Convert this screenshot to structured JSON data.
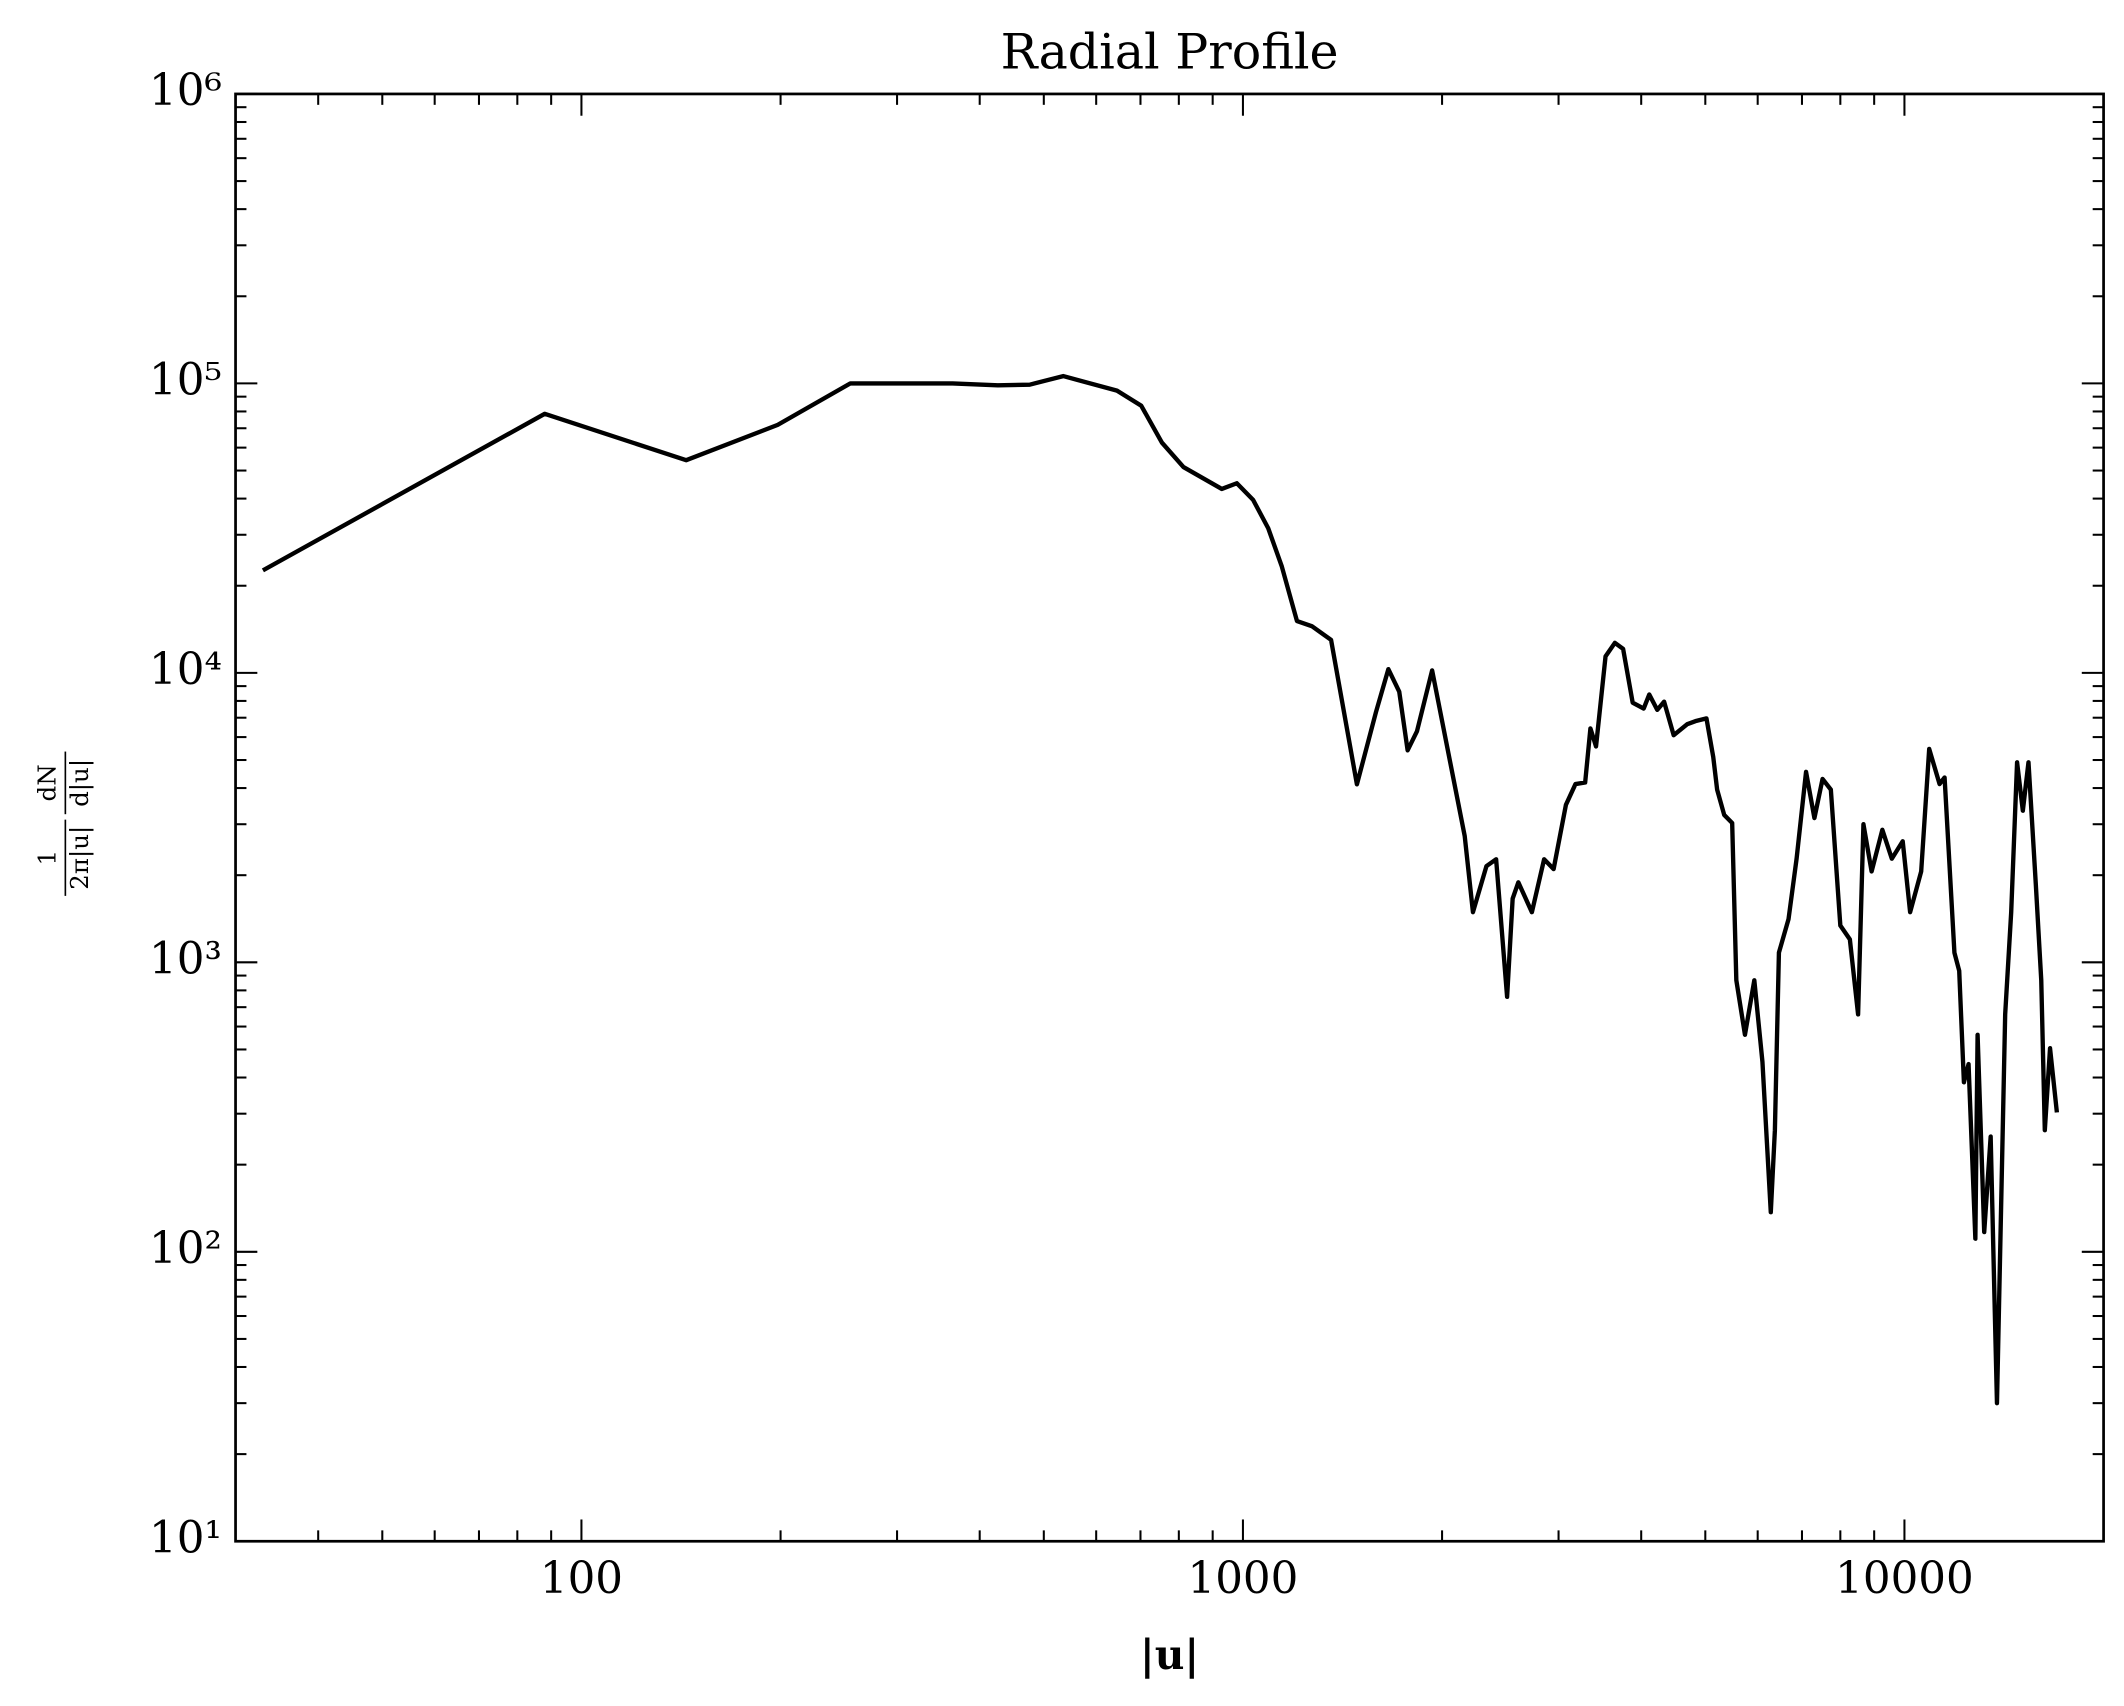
{
  "chart_data": {
    "type": "line",
    "title": "Radial Profile",
    "xlabel": "|u|",
    "ylabel": [
      {
        "numerator": "1",
        "denominator": "2π|u|"
      },
      {
        "numerator": "dN",
        "denominator": "d|u|"
      }
    ],
    "xscale": "log",
    "yscale": "log",
    "minor_ticks": true,
    "xlim": [
      30,
      20000
    ],
    "ylim": [
      10,
      1000000
    ],
    "xticks": [
      100,
      1000,
      10000
    ],
    "yticks": [
      {
        "value": 10,
        "label": "10¹"
      },
      {
        "value": 100,
        "label": "10²"
      },
      {
        "value": 1000,
        "label": "10³"
      },
      {
        "value": 10000,
        "label": "10⁴"
      },
      {
        "value": 100000,
        "label": "10⁵"
      },
      {
        "value": 1000000,
        "label": "10⁶"
      }
    ],
    "x": [
      33,
      88,
      144,
      198,
      255,
      364,
      426,
      476,
      535,
      645,
      702,
      754,
      813,
      929,
      979,
      1036,
      1092,
      1145,
      1207,
      1271,
      1359,
      1487,
      1589,
      1659,
      1723,
      1774,
      1833,
      1932,
      2164,
      2227,
      2334,
      2414,
      2508,
      2557,
      2608,
      2734,
      2853,
      2949,
      3078,
      3182,
      3291,
      3352,
      3418,
      3533,
      3650,
      3756,
      3883,
      4035,
      4114,
      4230,
      4332,
      4479,
      4695,
      4831,
      5020,
      5140,
      5210,
      5340,
      5490,
      5570,
      5740,
      5930,
      6100,
      6280,
      6370,
      6460,
      6680,
      6870,
      7100,
      7310,
      7520,
      7740,
      8000,
      8270,
      8510,
      8670,
      8920,
      9260,
      9570,
      9940,
      10200,
      10600,
      10900,
      11300,
      11500,
      11900,
      12100,
      12300,
      12500,
      12800,
      12900,
      13200,
      13500,
      13800,
      14200,
      14500,
      14800,
      15100,
      15400,
      15800,
      16100,
      16300,
      16600,
      17000
    ],
    "series": [
      {
        "name": "profile",
        "color": "#000000",
        "values": [
          22600,
          78500,
          54300,
          71900,
          100000,
          100000,
          98500,
          99000,
          106000,
          94400,
          83700,
          62500,
          51400,
          43200,
          45200,
          39600,
          31600,
          23300,
          15100,
          14500,
          13000,
          4120,
          7320,
          10300,
          8610,
          5400,
          6290,
          10200,
          2730,
          1490,
          2150,
          2270,
          760,
          1660,
          1890,
          1490,
          2270,
          2100,
          3500,
          4130,
          4180,
          6430,
          5570,
          11400,
          12700,
          12100,
          7890,
          7530,
          8420,
          7450,
          7950,
          6090,
          6650,
          6810,
          6960,
          5120,
          3950,
          3230,
          3030,
          867,
          562,
          867,
          453,
          137,
          263,
          1080,
          1410,
          2280,
          4550,
          3150,
          4300,
          3950,
          1340,
          1200,
          661,
          3000,
          2060,
          2870,
          2280,
          2620,
          1490,
          2060,
          5460,
          4130,
          4350,
          1080,
          935,
          385,
          445,
          111,
          562,
          117,
          250,
          30,
          661,
          1490,
          4910,
          3340,
          4910,
          1850,
          867,
          263,
          505,
          303
        ]
      }
    ]
  }
}
